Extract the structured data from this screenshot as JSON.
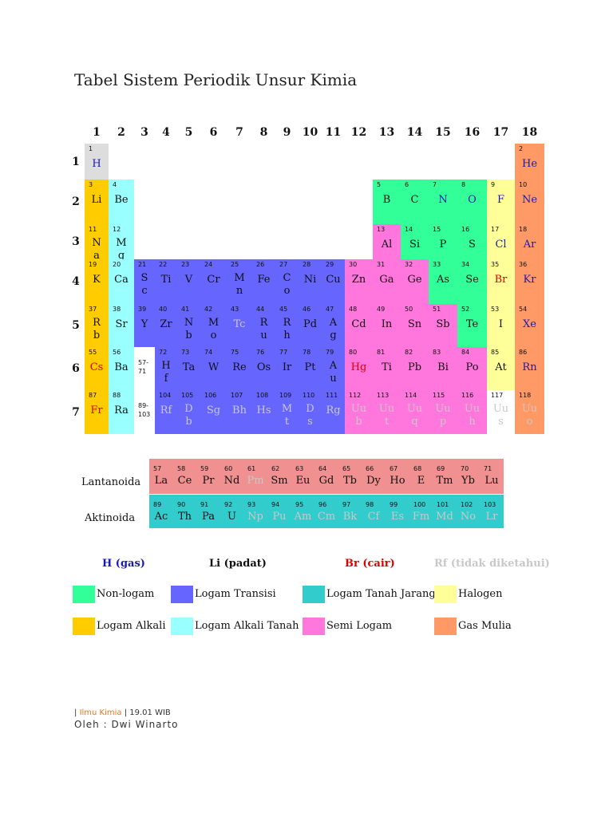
{
  "title": "Tabel Sistem Periodik Unsur Kimia",
  "groups": [
    "1",
    "2",
    "3",
    "4",
    "5",
    "6",
    "7",
    "8",
    "9",
    "10",
    "11",
    "12",
    "13",
    "14",
    "15",
    "16",
    "17",
    "18"
  ],
  "periods": [
    "1",
    "2",
    "3",
    "4",
    "5",
    "6",
    "7"
  ],
  "colors": {
    "nonmetal": "#33ff99",
    "alkali": "#ffcc00",
    "alkaline": "#99ffff",
    "transition": "#6666ff",
    "lanthanide": "#f09090",
    "actinide": "#33cccc",
    "metalloid": "#ff77dd",
    "halogen": "#ffff99",
    "noble": "#ff9966",
    "hydrogen": "#dddddd",
    "state_gas": "#1a1ab3",
    "state_solid": "#111111",
    "state_liquid": "#dd0000",
    "state_unknown": "#c8c8c8"
  },
  "elements": [
    {
      "n": "1",
      "s": "H",
      "cat": "hydrogen",
      "st": "gas"
    },
    {
      "n": "2",
      "s": "He",
      "cat": "noble",
      "st": "gas"
    },
    {
      "n": "3",
      "s": "Li",
      "cat": "alkali",
      "st": "solid"
    },
    {
      "n": "4",
      "s": "Be",
      "cat": "alkaline",
      "st": "solid"
    },
    {
      "n": "5",
      "s": "B",
      "cat": "nonmetal",
      "st": "solid"
    },
    {
      "n": "6",
      "s": "C",
      "cat": "nonmetal",
      "st": "solid"
    },
    {
      "n": "7",
      "s": "N",
      "cat": "nonmetal",
      "st": "gas"
    },
    {
      "n": "8",
      "s": "O",
      "cat": "nonmetal",
      "st": "gas"
    },
    {
      "n": "9",
      "s": "F",
      "cat": "halogen",
      "st": "gas"
    },
    {
      "n": "10",
      "s": "Ne",
      "cat": "noble",
      "st": "gas"
    },
    {
      "n": "11",
      "s": "N a",
      "cat": "alkali",
      "st": "solid"
    },
    {
      "n": "12",
      "s": "M g",
      "cat": "alkaline",
      "st": "solid"
    },
    {
      "n": "13",
      "s": "Al",
      "cat": "metalloid",
      "st": "solid"
    },
    {
      "n": "14",
      "s": "Si",
      "cat": "nonmetal",
      "st": "solid"
    },
    {
      "n": "15",
      "s": "P",
      "cat": "nonmetal",
      "st": "solid"
    },
    {
      "n": "16",
      "s": "S",
      "cat": "nonmetal",
      "st": "solid"
    },
    {
      "n": "17",
      "s": "Cl",
      "cat": "halogen",
      "st": "gas"
    },
    {
      "n": "18",
      "s": "Ar",
      "cat": "noble",
      "st": "gas"
    },
    {
      "n": "19",
      "s": "K",
      "cat": "alkali",
      "st": "solid"
    },
    {
      "n": "20",
      "s": "Ca",
      "cat": "alkaline",
      "st": "solid"
    },
    {
      "n": "21",
      "s": "S c",
      "cat": "transition",
      "st": "solid"
    },
    {
      "n": "22",
      "s": "Ti",
      "cat": "transition",
      "st": "solid"
    },
    {
      "n": "23",
      "s": "V",
      "cat": "transition",
      "st": "solid"
    },
    {
      "n": "24",
      "s": "Cr",
      "cat": "transition",
      "st": "solid"
    },
    {
      "n": "25",
      "s": "M n",
      "cat": "transition",
      "st": "solid"
    },
    {
      "n": "26",
      "s": "Fe",
      "cat": "transition",
      "st": "solid"
    },
    {
      "n": "27",
      "s": "C o",
      "cat": "transition",
      "st": "solid"
    },
    {
      "n": "28",
      "s": "Ni",
      "cat": "transition",
      "st": "solid"
    },
    {
      "n": "29",
      "s": "Cu",
      "cat": "transition",
      "st": "solid"
    },
    {
      "n": "30",
      "s": "Zn",
      "cat": "metalloid",
      "st": "solid"
    },
    {
      "n": "31",
      "s": "Ga",
      "cat": "metalloid",
      "st": "solid"
    },
    {
      "n": "32",
      "s": "Ge",
      "cat": "metalloid",
      "st": "solid"
    },
    {
      "n": "33",
      "s": "As",
      "cat": "nonmetal",
      "st": "solid"
    },
    {
      "n": "34",
      "s": "Se",
      "cat": "nonmetal",
      "st": "solid"
    },
    {
      "n": "35",
      "s": "Br",
      "cat": "halogen",
      "st": "liquid"
    },
    {
      "n": "36",
      "s": "Kr",
      "cat": "noble",
      "st": "gas"
    },
    {
      "n": "37",
      "s": "R b",
      "cat": "alkali",
      "st": "solid"
    },
    {
      "n": "38",
      "s": "Sr",
      "cat": "alkaline",
      "st": "solid"
    },
    {
      "n": "39",
      "s": "Y",
      "cat": "transition",
      "st": "solid"
    },
    {
      "n": "40",
      "s": "Zr",
      "cat": "transition",
      "st": "solid"
    },
    {
      "n": "41",
      "s": "N b",
      "cat": "transition",
      "st": "solid"
    },
    {
      "n": "42",
      "s": "M o",
      "cat": "transition",
      "st": "solid"
    },
    {
      "n": "43",
      "s": "Tc",
      "cat": "transition",
      "st": "unknown"
    },
    {
      "n": "44",
      "s": "R u",
      "cat": "transition",
      "st": "solid"
    },
    {
      "n": "45",
      "s": "R h",
      "cat": "transition",
      "st": "solid"
    },
    {
      "n": "46",
      "s": "Pd",
      "cat": "transition",
      "st": "solid"
    },
    {
      "n": "47",
      "s": "A g",
      "cat": "transition",
      "st": "solid"
    },
    {
      "n": "48",
      "s": "Cd",
      "cat": "metalloid",
      "st": "solid"
    },
    {
      "n": "49",
      "s": "In",
      "cat": "metalloid",
      "st": "solid"
    },
    {
      "n": "50",
      "s": "Sn",
      "cat": "metalloid",
      "st": "solid"
    },
    {
      "n": "51",
      "s": "Sb",
      "cat": "metalloid",
      "st": "solid"
    },
    {
      "n": "52",
      "s": "Te",
      "cat": "nonmetal",
      "st": "solid"
    },
    {
      "n": "53",
      "s": "I",
      "cat": "halogen",
      "st": "solid"
    },
    {
      "n": "54",
      "s": "Xe",
      "cat": "noble",
      "st": "gas"
    },
    {
      "n": "55",
      "s": "Cs",
      "cat": "alkali",
      "st": "liquid"
    },
    {
      "n": "56",
      "s": "Ba",
      "cat": "alkaline",
      "st": "solid"
    },
    {
      "n": "57-71",
      "s": "",
      "cat": "blank",
      "st": "solid"
    },
    {
      "n": "72",
      "s": "H f",
      "cat": "transition",
      "st": "solid"
    },
    {
      "n": "73",
      "s": "Ta",
      "cat": "transition",
      "st": "solid"
    },
    {
      "n": "74",
      "s": "W",
      "cat": "transition",
      "st": "solid"
    },
    {
      "n": "75",
      "s": "Re",
      "cat": "transition",
      "st": "solid"
    },
    {
      "n": "76",
      "s": "Os",
      "cat": "transition",
      "st": "solid"
    },
    {
      "n": "77",
      "s": "Ir",
      "cat": "transition",
      "st": "solid"
    },
    {
      "n": "78",
      "s": "Pt",
      "cat": "transition",
      "st": "solid"
    },
    {
      "n": "79",
      "s": "A u",
      "cat": "transition",
      "st": "solid"
    },
    {
      "n": "80",
      "s": "Hg",
      "cat": "metalloid",
      "st": "liquid"
    },
    {
      "n": "81",
      "s": "Ti",
      "cat": "metalloid",
      "st": "solid"
    },
    {
      "n": "82",
      "s": "Pb",
      "cat": "metalloid",
      "st": "solid"
    },
    {
      "n": "83",
      "s": "Bi",
      "cat": "metalloid",
      "st": "solid"
    },
    {
      "n": "84",
      "s": "Po",
      "cat": "metalloid",
      "st": "solid"
    },
    {
      "n": "85",
      "s": "At",
      "cat": "halogen",
      "st": "solid"
    },
    {
      "n": "86",
      "s": "Rn",
      "cat": "noble",
      "st": "gas"
    },
    {
      "n": "87",
      "s": "Fr",
      "cat": "alkali",
      "st": "liquid"
    },
    {
      "n": "88",
      "s": "Ra",
      "cat": "alkaline",
      "st": "solid"
    },
    {
      "n": "89-103",
      "s": "",
      "cat": "blank",
      "st": "solid"
    },
    {
      "n": "104",
      "s": "Rf",
      "cat": "transition",
      "st": "unknown"
    },
    {
      "n": "105",
      "s": "D b",
      "cat": "transition",
      "st": "unknown"
    },
    {
      "n": "106",
      "s": "Sg",
      "cat": "transition",
      "st": "unknown"
    },
    {
      "n": "107",
      "s": "Bh",
      "cat": "transition",
      "st": "unknown"
    },
    {
      "n": "108",
      "s": "Hs",
      "cat": "transition",
      "st": "unknown"
    },
    {
      "n": "109",
      "s": "M t",
      "cat": "transition",
      "st": "unknown"
    },
    {
      "n": "110",
      "s": "D s",
      "cat": "transition",
      "st": "unknown"
    },
    {
      "n": "111",
      "s": "Rg",
      "cat": "transition",
      "st": "unknown"
    },
    {
      "n": "112",
      "s": "Uu b",
      "cat": "metalloid",
      "st": "unknown"
    },
    {
      "n": "113",
      "s": "Uu t",
      "cat": "metalloid",
      "st": "unknown"
    },
    {
      "n": "114",
      "s": "Uu q",
      "cat": "metalloid",
      "st": "unknown"
    },
    {
      "n": "115",
      "s": "Uu p",
      "cat": "metalloid",
      "st": "unknown"
    },
    {
      "n": "116",
      "s": "Uu h",
      "cat": "metalloid",
      "st": "unknown"
    },
    {
      "n": "117",
      "s": "Uu s",
      "cat": "blank",
      "st": "unknown"
    },
    {
      "n": "118",
      "s": "Uu o",
      "cat": "noble",
      "st": "unknown"
    }
  ],
  "lanthanoid_label": "Lantanoida",
  "actinoid_label": "Aktinoida",
  "lanthanoids": [
    {
      "n": "57",
      "s": "La",
      "st": "solid"
    },
    {
      "n": "58",
      "s": "Ce",
      "st": "solid"
    },
    {
      "n": "59",
      "s": "Pr",
      "st": "solid"
    },
    {
      "n": "60",
      "s": "Nd",
      "st": "solid"
    },
    {
      "n": "61",
      "s": "Pm",
      "st": "unknown"
    },
    {
      "n": "62",
      "s": "Sm",
      "st": "solid"
    },
    {
      "n": "63",
      "s": "Eu",
      "st": "solid"
    },
    {
      "n": "64",
      "s": "Gd",
      "st": "solid"
    },
    {
      "n": "65",
      "s": "Tb",
      "st": "solid"
    },
    {
      "n": "66",
      "s": "Dy",
      "st": "solid"
    },
    {
      "n": "67",
      "s": "Ho",
      "st": "solid"
    },
    {
      "n": "68",
      "s": "E",
      "st": "solid"
    },
    {
      "n": "69",
      "s": "Tm",
      "st": "solid"
    },
    {
      "n": "70",
      "s": "Yb",
      "st": "solid"
    },
    {
      "n": "71",
      "s": "Lu",
      "st": "solid"
    }
  ],
  "actinoids": [
    {
      "n": "89",
      "s": "Ac",
      "st": "solid"
    },
    {
      "n": "90",
      "s": "Th",
      "st": "solid"
    },
    {
      "n": "91",
      "s": "Pa",
      "st": "solid"
    },
    {
      "n": "92",
      "s": "U",
      "st": "solid"
    },
    {
      "n": "93",
      "s": "Np",
      "st": "unknown"
    },
    {
      "n": "94",
      "s": "Pu",
      "st": "unknown"
    },
    {
      "n": "95",
      "s": "Am",
      "st": "unknown"
    },
    {
      "n": "96",
      "s": "Cm",
      "st": "unknown"
    },
    {
      "n": "97",
      "s": "Bk",
      "st": "unknown"
    },
    {
      "n": "98",
      "s": "Cf",
      "st": "unknown"
    },
    {
      "n": "99",
      "s": "Es",
      "st": "unknown"
    },
    {
      "n": "100",
      "s": "Fm",
      "st": "unknown"
    },
    {
      "n": "101",
      "s": "Md",
      "st": "unknown"
    },
    {
      "n": "102",
      "s": "No",
      "st": "unknown"
    },
    {
      "n": "103",
      "s": "Lr",
      "st": "unknown"
    }
  ],
  "states": {
    "gas": "H (gas)",
    "solid": "Li (padat)",
    "liquid": "Br (cair)",
    "unknown": "Rf (tidak diketahui)"
  },
  "legend": [
    {
      "label": "Non-logam",
      "cat": "nonmetal"
    },
    {
      "label": "Logam Transisi",
      "cat": "transition"
    },
    {
      "label": "Logam Tanah Jarang",
      "cat": "actinide"
    },
    {
      "label": "Halogen",
      "cat": "halogen"
    },
    {
      "label": "Logam Alkali",
      "cat": "alkali"
    },
    {
      "label": "Logam Alkali Tanah",
      "cat": "alkaline"
    },
    {
      "label": "Semi Logam",
      "cat": "metalloid"
    },
    {
      "label": "Gas Mulia",
      "cat": "noble"
    }
  ],
  "footer": {
    "sep1": "| ",
    "link": "Ilmu Kimia",
    "rest": " | 19.01 WIB",
    "author": "Oleh : Dwi Winarto"
  }
}
